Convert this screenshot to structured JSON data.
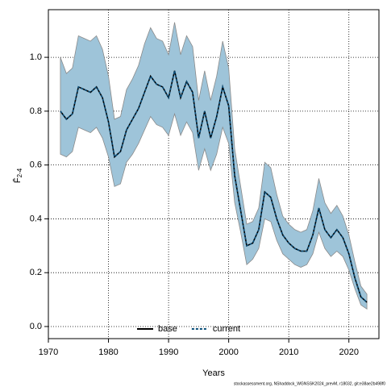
{
  "chart_data": {
    "type": "line",
    "xlabel": "Years",
    "ylabel": {
      "main": "F̄",
      "sub": "2-4"
    },
    "footer": "stockassessment.org, NShaddock_WGNSSK2024_prevM, r18032, git:e38ae2b498f0",
    "x": [
      1972,
      1973,
      1974,
      1975,
      1976,
      1977,
      1978,
      1979,
      1980,
      1981,
      1982,
      1983,
      1984,
      1985,
      1986,
      1987,
      1988,
      1989,
      1990,
      1991,
      1992,
      1993,
      1994,
      1995,
      1996,
      1997,
      1998,
      1999,
      2000,
      2001,
      2002,
      2003,
      2004,
      2005,
      2006,
      2007,
      2008,
      2009,
      2010,
      2011,
      2012,
      2013,
      2014,
      2015,
      2016,
      2017,
      2018,
      2019,
      2020,
      2021,
      2022,
      2023
    ],
    "series": [
      {
        "name": "base",
        "color": "#000000",
        "dash": false,
        "values": [
          0.8,
          0.77,
          0.79,
          0.89,
          0.88,
          0.87,
          0.89,
          0.85,
          0.76,
          0.63,
          0.65,
          0.73,
          0.77,
          0.81,
          0.87,
          0.93,
          0.9,
          0.89,
          0.85,
          0.95,
          0.85,
          0.91,
          0.87,
          0.7,
          0.8,
          0.7,
          0.78,
          0.89,
          0.82,
          0.56,
          0.43,
          0.3,
          0.31,
          0.36,
          0.5,
          0.48,
          0.4,
          0.34,
          0.31,
          0.29,
          0.28,
          0.28,
          0.34,
          0.44,
          0.36,
          0.33,
          0.36,
          0.33,
          0.27,
          0.18,
          0.11,
          0.09
        ]
      },
      {
        "name": "current",
        "color": "#0b4f7a",
        "dash": true,
        "band_color": "#9ec4d9",
        "values": [
          0.8,
          0.77,
          0.79,
          0.89,
          0.88,
          0.87,
          0.89,
          0.85,
          0.76,
          0.63,
          0.65,
          0.73,
          0.77,
          0.81,
          0.87,
          0.93,
          0.9,
          0.89,
          0.85,
          0.95,
          0.85,
          0.91,
          0.87,
          0.7,
          0.8,
          0.7,
          0.78,
          0.89,
          0.82,
          0.56,
          0.43,
          0.3,
          0.31,
          0.36,
          0.5,
          0.48,
          0.4,
          0.34,
          0.31,
          0.29,
          0.28,
          0.28,
          0.34,
          0.44,
          0.36,
          0.33,
          0.36,
          0.33,
          0.27,
          0.18,
          0.11,
          0.09
        ],
        "upper": [
          1.0,
          0.94,
          0.96,
          1.08,
          1.07,
          1.06,
          1.08,
          1.03,
          0.93,
          0.77,
          0.78,
          0.88,
          0.92,
          0.97,
          1.05,
          1.11,
          1.07,
          1.06,
          1.01,
          1.13,
          1.01,
          1.08,
          1.04,
          0.84,
          0.95,
          0.84,
          0.93,
          1.06,
          0.96,
          0.66,
          0.52,
          0.38,
          0.39,
          0.44,
          0.61,
          0.59,
          0.49,
          0.41,
          0.38,
          0.36,
          0.35,
          0.36,
          0.43,
          0.55,
          0.46,
          0.42,
          0.45,
          0.41,
          0.34,
          0.24,
          0.15,
          0.12
        ],
        "lower": [
          0.64,
          0.63,
          0.65,
          0.74,
          0.73,
          0.72,
          0.74,
          0.7,
          0.63,
          0.52,
          0.53,
          0.61,
          0.64,
          0.68,
          0.73,
          0.78,
          0.75,
          0.74,
          0.71,
          0.79,
          0.71,
          0.76,
          0.72,
          0.58,
          0.66,
          0.58,
          0.64,
          0.74,
          0.68,
          0.46,
          0.35,
          0.23,
          0.25,
          0.29,
          0.4,
          0.39,
          0.32,
          0.27,
          0.25,
          0.23,
          0.22,
          0.23,
          0.27,
          0.35,
          0.29,
          0.26,
          0.28,
          0.26,
          0.21,
          0.14,
          0.08,
          0.065
        ]
      }
    ],
    "xlim": [
      1970,
      2025
    ],
    "ylim": [
      -0.045,
      1.177
    ],
    "xticks": [
      1970,
      1980,
      1990,
      2000,
      2010,
      2020
    ],
    "yticks": [
      {
        "value": 0,
        "label": "0.0"
      },
      0.2,
      0.4,
      0.6,
      0.8,
      {
        "value": 1,
        "label": "1.0"
      }
    ],
    "grid": true,
    "legend": "bottom"
  }
}
